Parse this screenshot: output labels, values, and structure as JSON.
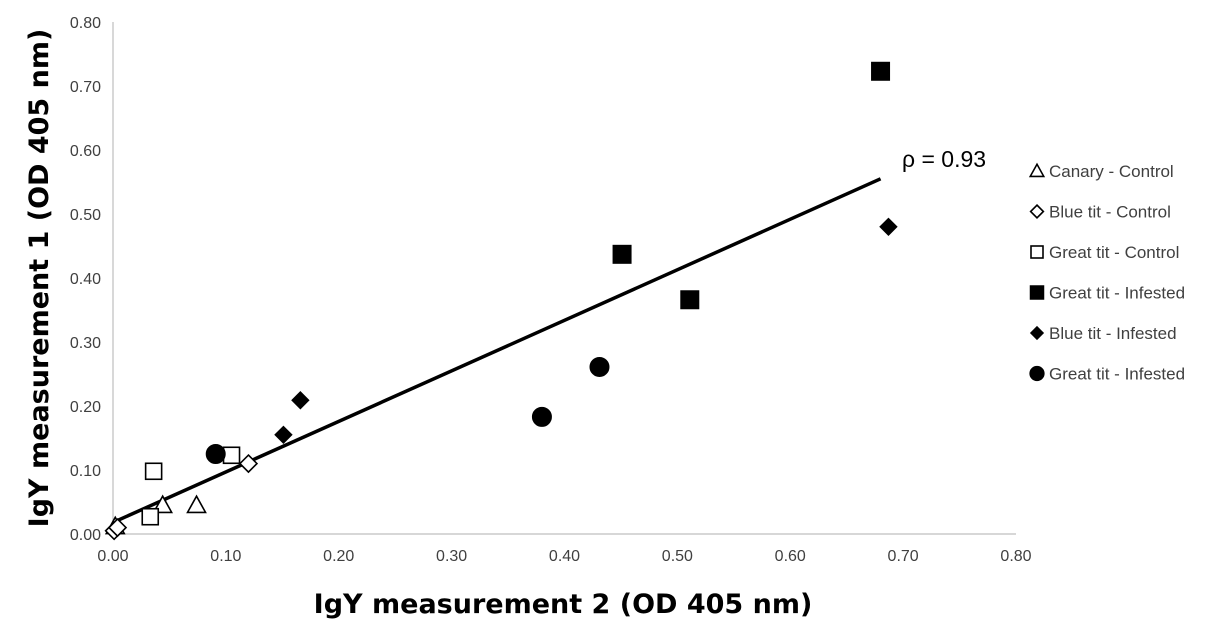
{
  "chart_data": {
    "type": "scatter",
    "xlabel": "IgY measurement 2 (OD 405 nm)",
    "ylabel": "IgY measurement 1 (OD 405 nm)",
    "xlim": [
      0,
      0.8
    ],
    "ylim": [
      0,
      0.8
    ],
    "x_ticks": [
      "0.00",
      "0.10",
      "0.20",
      "0.30",
      "0.40",
      "0.50",
      "0.60",
      "0.70",
      "0.80"
    ],
    "y_ticks": [
      "0.00",
      "0.10",
      "0.20",
      "0.30",
      "0.40",
      "0.50",
      "0.60",
      "0.70",
      "0.80"
    ],
    "grid": false,
    "legend_position": "right",
    "annotation": "ρ = 0.93",
    "trendline": {
      "x": [
        0.0,
        0.68
      ],
      "y": [
        0.018,
        0.555
      ]
    },
    "series": [
      {
        "name": "Canary - Control",
        "marker": "triangle-open",
        "points": [
          [
            0.002,
            0.012
          ],
          [
            0.044,
            0.045
          ],
          [
            0.074,
            0.045
          ]
        ]
      },
      {
        "name": "Blue tit - Control",
        "marker": "diamond-open",
        "points": [
          [
            0.001,
            0.005
          ],
          [
            0.004,
            0.01
          ],
          [
            0.12,
            0.11
          ]
        ]
      },
      {
        "name": "Great tit - Control",
        "marker": "square-open",
        "points": [
          [
            0.036,
            0.098
          ],
          [
            0.033,
            0.027
          ],
          [
            0.105,
            0.123
          ]
        ]
      },
      {
        "name": "Great tit - Infested",
        "marker": "square-filled",
        "points": [
          [
            0.68,
            0.723
          ],
          [
            0.451,
            0.437
          ],
          [
            0.511,
            0.366
          ]
        ]
      },
      {
        "name": "Blue tit - Infested",
        "marker": "diamond-filled",
        "points": [
          [
            0.687,
            0.48
          ],
          [
            0.166,
            0.209
          ],
          [
            0.151,
            0.155
          ]
        ]
      },
      {
        "name": "Great tit - Infested",
        "marker": "circle-filled",
        "points": [
          [
            0.091,
            0.125
          ],
          [
            0.38,
            0.183
          ],
          [
            0.431,
            0.261
          ]
        ]
      }
    ]
  }
}
